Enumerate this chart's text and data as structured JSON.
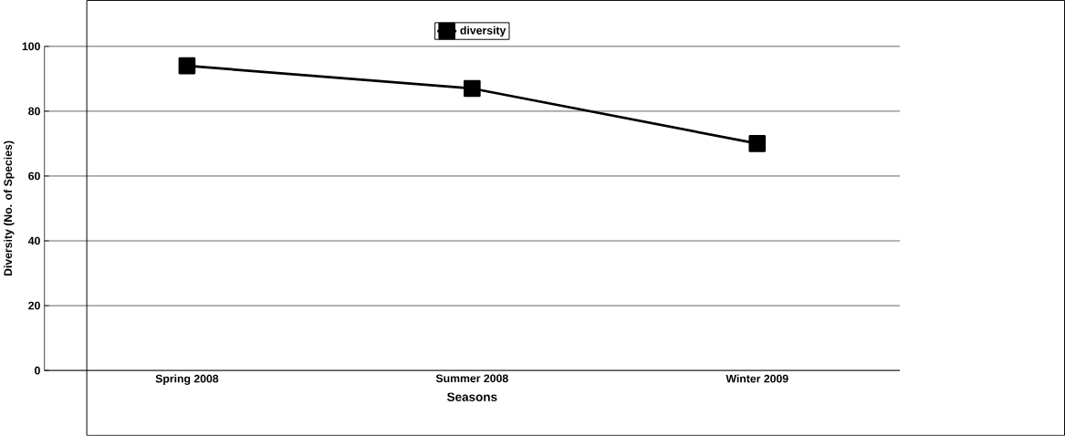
{
  "chart_data": {
    "type": "line",
    "xlabel": "Seasons",
    "ylabel": "Diversity (No. of Species)",
    "categories": [
      "Spring 2008",
      "Summer 2008",
      "Winter 2009"
    ],
    "series": [
      {
        "name": "diversity",
        "color": "#000000",
        "values": [
          94,
          87,
          70
        ]
      }
    ],
    "ylim": [
      0,
      100
    ],
    "yticks": [
      0,
      20,
      40,
      60,
      80,
      100
    ],
    "grid": "y",
    "legend": "top",
    "marker": "square",
    "line_style": "solid"
  }
}
